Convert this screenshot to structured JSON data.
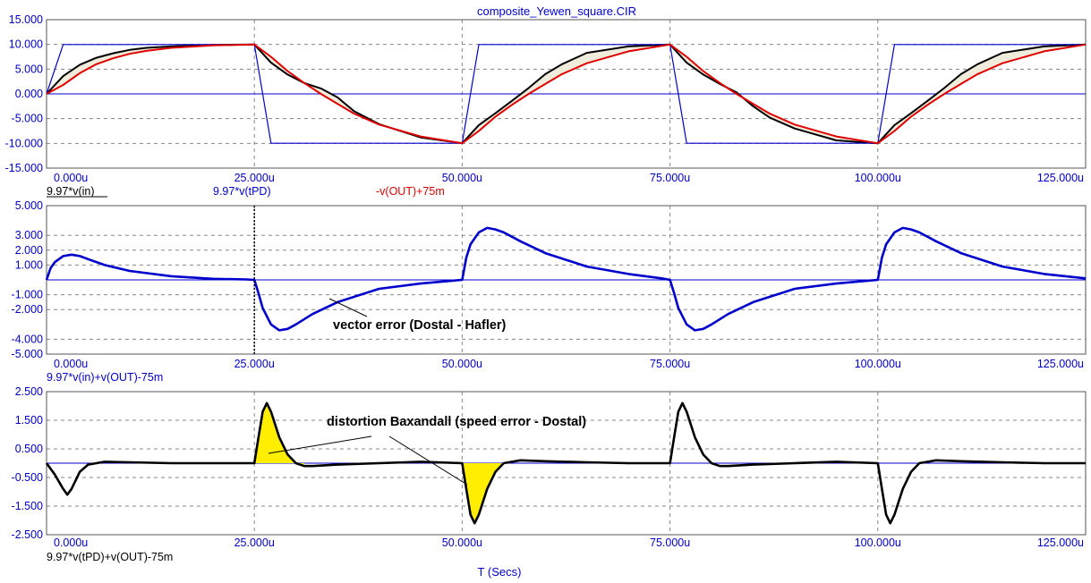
{
  "title": "composite_Yewen_square.CIR",
  "xlabel": "T (Secs)",
  "colors": {
    "blue": "#0000cc",
    "black": "#000000",
    "red": "#e00000",
    "fill": "#f0ecdc",
    "yellow": "#ffee00",
    "grid": "#888888"
  },
  "chart_data": [
    {
      "type": "line",
      "x_ticks": [
        "0.000u",
        "25.000u",
        "50.000u",
        "75.000u",
        "100.000u",
        "125.000u"
      ],
      "y_ticks": [
        "15.000",
        "10.000",
        "5.000",
        "0.000",
        "-5.000",
        "-10.000",
        "-15.000"
      ],
      "xlim": [
        0,
        125
      ],
      "ylim": [
        -15,
        15
      ],
      "grid": true,
      "series": [
        {
          "name": "9.97*v(in)",
          "color": "#000000",
          "description": "exponential approach, tau ~4.5u, toggles +/-9.97 every 25u",
          "x": [
            0,
            2,
            4,
            6,
            8,
            10,
            12,
            15,
            20,
            25,
            27,
            29,
            31,
            33,
            35,
            37,
            40,
            45,
            50,
            52,
            54,
            56,
            58,
            60,
            62,
            65,
            70,
            75,
            77,
            79,
            81,
            83,
            85,
            87,
            90,
            95,
            100,
            102,
            104,
            106,
            108,
            110,
            112,
            115,
            120,
            125
          ],
          "y": [
            0,
            3.6,
            5.9,
            7.3,
            8.2,
            8.9,
            9.3,
            9.6,
            9.9,
            9.97,
            6.3,
            3.9,
            2.2,
            1.1,
            -0.7,
            -3.5,
            -6.1,
            -8.8,
            -9.97,
            -6.3,
            -3.9,
            -1.4,
            1.2,
            4.0,
            6.0,
            8.3,
            9.6,
            9.97,
            6.3,
            3.9,
            2.0,
            0.3,
            -2.5,
            -4.8,
            -7.0,
            -9.4,
            -9.97,
            -6.3,
            -3.9,
            -1.4,
            1.2,
            4.0,
            6.0,
            8.3,
            9.6,
            9.97
          ]
        },
        {
          "name": "9.97*v(tPD)",
          "color": "#0000cc",
          "description": "trapezoid square wave, slew ~2u",
          "x": [
            0,
            2,
            25,
            27,
            50,
            52,
            75,
            77,
            100,
            102,
            125
          ],
          "y": [
            0,
            9.97,
            9.97,
            -9.97,
            -9.97,
            9.97,
            9.97,
            -9.97,
            -9.97,
            9.97,
            9.97
          ]
        },
        {
          "name": "-v(OUT)+75m",
          "color": "#e00000",
          "description": "smooth S-curve response",
          "x": [
            0,
            2,
            4,
            6,
            8,
            10,
            12,
            15,
            20,
            25,
            27,
            29,
            31,
            33,
            35,
            37,
            40,
            45,
            50,
            52,
            54,
            56,
            58,
            60,
            62,
            65,
            70,
            75,
            77,
            79,
            81,
            83,
            85,
            87,
            90,
            95,
            100,
            102,
            104,
            106,
            108,
            110,
            112,
            115,
            120,
            125
          ],
          "y": [
            0,
            1.8,
            4.2,
            6.0,
            7.2,
            8.1,
            8.7,
            9.3,
            9.8,
            9.97,
            7.5,
            4.6,
            2.2,
            0.0,
            -2.0,
            -4.0,
            -6.2,
            -8.6,
            -9.97,
            -7.5,
            -4.6,
            -2.2,
            0.0,
            2.0,
            4.0,
            6.2,
            8.6,
            9.97,
            7.5,
            4.6,
            2.2,
            0.0,
            -2.0,
            -4.0,
            -6.2,
            -8.6,
            -9.97,
            -7.5,
            -4.6,
            -2.2,
            0.0,
            2.0,
            4.0,
            6.2,
            8.6,
            9.97
          ]
        }
      ],
      "expressions": [
        "9.97*v(in)",
        "9.97*v(tPD)",
        "-v(OUT)+75m"
      ]
    },
    {
      "type": "line",
      "x_ticks": [
        "0.000u",
        "25.000u",
        "50.000u",
        "75.000u",
        "100.000u",
        "125.000u"
      ],
      "y_ticks": [
        "5.000",
        "3.000",
        "2.000",
        "1.000",
        "-1.000",
        "-2.000",
        "-4.000",
        "-5.000"
      ],
      "xlim": [
        0,
        125
      ],
      "ylim": [
        -5,
        5
      ],
      "grid": true,
      "series": [
        {
          "name": "9.97*v(in)+v(OUT)-75m",
          "color": "#0000cc",
          "x": [
            0,
            0.5,
            1,
            2,
            3,
            4,
            5,
            7,
            10,
            15,
            20,
            24,
            25,
            25.5,
            26,
            27,
            28,
            29,
            30,
            32,
            35,
            40,
            45,
            49,
            50,
            50.5,
            51,
            52,
            53,
            54,
            55,
            57,
            60,
            65,
            70,
            74,
            75,
            75.5,
            76,
            77,
            78,
            79,
            80,
            82,
            85,
            90,
            95,
            99,
            100,
            100.5,
            101,
            102,
            103,
            104,
            105,
            107,
            110,
            115,
            120,
            125
          ],
          "y": [
            0,
            0.8,
            1.2,
            1.6,
            1.7,
            1.6,
            1.4,
            1.0,
            0.6,
            0.25,
            0.07,
            0.03,
            0,
            -0.9,
            -1.9,
            -3.0,
            -3.4,
            -3.3,
            -3.0,
            -2.3,
            -1.5,
            -0.6,
            -0.25,
            -0.05,
            0,
            1.5,
            2.4,
            3.2,
            3.5,
            3.4,
            3.2,
            2.6,
            1.8,
            0.9,
            0.4,
            0.1,
            0,
            -0.9,
            -1.9,
            -3.0,
            -3.4,
            -3.3,
            -3.0,
            -2.3,
            -1.5,
            -0.6,
            -0.25,
            -0.05,
            0,
            1.5,
            2.4,
            3.2,
            3.5,
            3.4,
            3.2,
            2.6,
            1.8,
            0.9,
            0.4,
            0.1
          ]
        }
      ],
      "expressions": [
        "9.97*v(in)+v(OUT)-75m"
      ],
      "annotation": "vector error (Dostal - Hafler)"
    },
    {
      "type": "line",
      "x_ticks": [
        "0.000u",
        "25.000u",
        "50.000u",
        "75.000u",
        "100.000u",
        "125.000u"
      ],
      "y_ticks": [
        "2.500",
        "1.500",
        "0.500",
        "-0.500",
        "-1.500",
        "-2.500"
      ],
      "xlim": [
        0,
        125
      ],
      "ylim": [
        -2.5,
        2.5
      ],
      "grid": true,
      "series": [
        {
          "name": "9.97*v(tPD)+v(OUT)-75m",
          "color": "#000000",
          "x": [
            0,
            1,
            2,
            2.5,
            3,
            4,
            5,
            7,
            10,
            15,
            20,
            25,
            25.5,
            26,
            26.5,
            27,
            28,
            29,
            30,
            31,
            32,
            35,
            40,
            45,
            50,
            50.5,
            51,
            51.5,
            52,
            53,
            54,
            55,
            57,
            60,
            65,
            70,
            75,
            75.5,
            76,
            76.5,
            77,
            78,
            79,
            80,
            81,
            82,
            85,
            90,
            95,
            100,
            100.5,
            101,
            101.5,
            102,
            103,
            104,
            105,
            107,
            110,
            115,
            120,
            125
          ],
          "y": [
            0,
            -0.4,
            -0.9,
            -1.1,
            -0.9,
            -0.3,
            -0.05,
            0.05,
            0.03,
            0.0,
            0.0,
            0.0,
            0.9,
            1.8,
            2.1,
            1.8,
            0.9,
            0.3,
            0.0,
            -0.1,
            -0.1,
            -0.05,
            0.0,
            0.05,
            0.0,
            -0.9,
            -1.8,
            -2.1,
            -1.8,
            -0.9,
            -0.3,
            0.0,
            0.1,
            0.07,
            0.03,
            0.0,
            0.0,
            0.9,
            1.8,
            2.1,
            1.8,
            0.9,
            0.3,
            0.0,
            -0.1,
            -0.1,
            -0.05,
            0.0,
            0.05,
            0.0,
            -0.9,
            -1.8,
            -2.1,
            -1.8,
            -0.9,
            -0.3,
            0.0,
            0.1,
            0.07,
            0.03,
            0.0,
            0.0
          ]
        }
      ],
      "expressions": [
        "9.97*v(tPD)+v(OUT)-75m"
      ],
      "annotation": "distortion Baxandall (speed error - Dostal)"
    }
  ]
}
